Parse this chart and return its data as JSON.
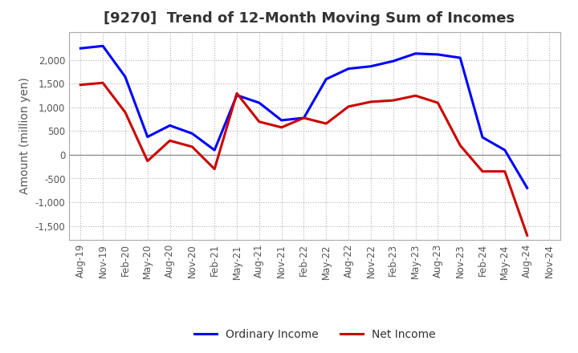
{
  "title": "[9270]  Trend of 12-Month Moving Sum of Incomes",
  "ylabel": "Amount (million yen)",
  "background_color": "#ffffff",
  "plot_bg_color": "#ffffff",
  "grid_color": "#aaaaaa",
  "title_fontsize": 13,
  "label_fontsize": 10,
  "tick_fontsize": 8.5,
  "title_color": "#333333",
  "tick_color": "#555555",
  "xlabels": [
    "Aug-19",
    "Nov-19",
    "Feb-20",
    "May-20",
    "Aug-20",
    "Nov-20",
    "Feb-21",
    "May-21",
    "Aug-21",
    "Nov-21",
    "Feb-22",
    "May-22",
    "Aug-22",
    "Nov-22",
    "Feb-23",
    "May-23",
    "Aug-23",
    "Nov-23",
    "Feb-24",
    "May-24",
    "Aug-24",
    "Nov-24"
  ],
  "ordinary_income": [
    2250,
    2300,
    1650,
    380,
    620,
    450,
    100,
    1260,
    1100,
    730,
    780,
    1600,
    1820,
    1870,
    1980,
    2140,
    2120,
    2050,
    370,
    100,
    -700,
    null
  ],
  "net_income": [
    1480,
    1520,
    900,
    -130,
    300,
    170,
    -300,
    1300,
    700,
    580,
    780,
    660,
    1020,
    1120,
    1150,
    1250,
    1100,
    200,
    -350,
    -350,
    -1700,
    null
  ],
  "ordinary_income_color": "#0000ff",
  "net_income_color": "#cc0000",
  "ylim": [
    -1800,
    2600
  ],
  "yticks": [
    -1500,
    -1000,
    -500,
    0,
    500,
    1000,
    1500,
    2000
  ],
  "legend_ordinary": "Ordinary Income",
  "legend_net": "Net Income",
  "line_width": 2.2
}
